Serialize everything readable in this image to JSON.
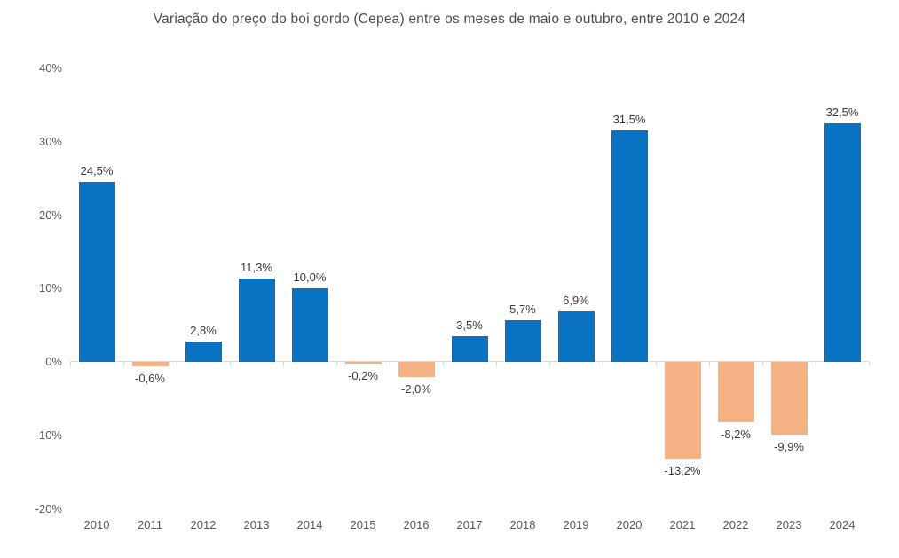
{
  "chart_data": {
    "type": "bar",
    "title": "Variação do preço do boi gordo (Cepea) entre os meses de maio e outubro, entre 2010 e 2024",
    "categories": [
      "2010",
      "2011",
      "2012",
      "2013",
      "2014",
      "2015",
      "2016",
      "2017",
      "2018",
      "2019",
      "2020",
      "2021",
      "2022",
      "2023",
      "2024"
    ],
    "values": [
      24.5,
      -0.6,
      2.8,
      11.3,
      10.0,
      -0.2,
      -2.0,
      3.5,
      5.7,
      6.9,
      31.5,
      -13.2,
      -8.2,
      -9.9,
      32.5
    ],
    "data_labels": [
      "24,5%",
      "-0,6%",
      "2,8%",
      "11,3%",
      "10,0%",
      "-0,2%",
      "-2,0%",
      "3,5%",
      "5,7%",
      "6,9%",
      "31,5%",
      "-13,2%",
      "-8,2%",
      "-9,9%",
      "32,5%"
    ],
    "xlabel": "",
    "ylabel": "",
    "ylim": [
      -20,
      40
    ],
    "yticks": [
      40,
      30,
      20,
      10,
      0,
      -10,
      -20
    ],
    "ytick_labels": [
      "40%",
      "30%",
      "20%",
      "10%",
      "0%",
      "-10%",
      "-20%"
    ],
    "grid": false,
    "legend_position": "none",
    "colors": {
      "positive_bar": "#0a72c2",
      "negative_bar": "#f4b183",
      "axis_line": "#d9d9d9",
      "axis_text": "#595959",
      "data_label_text": "#3a3a3a",
      "title_text": "#4d4d4d"
    }
  }
}
